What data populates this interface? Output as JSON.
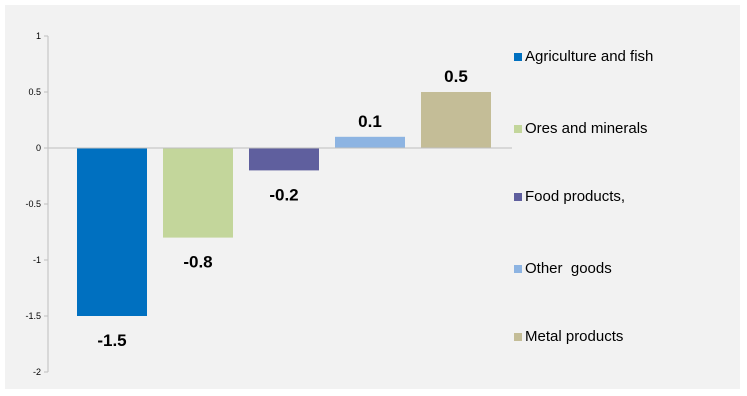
{
  "chart_data": {
    "type": "bar",
    "title": "",
    "xlabel": "",
    "ylabel": "",
    "ylim": [
      -2,
      1
    ],
    "yticks": [
      1,
      0.5,
      0,
      -0.5,
      -1,
      -1.5,
      -2
    ],
    "ytick_labels": [
      "1",
      "0.5",
      "0",
      "-0.5",
      "-1",
      "-1.5",
      "-2"
    ],
    "grid": false,
    "legend_position": "right",
    "categories": [
      "Agriculture and fish",
      "Ores and minerals",
      "Food products,",
      "Other  goods",
      "Metal products"
    ],
    "values": [
      -1.5,
      -0.8,
      -0.2,
      0.1,
      0.5
    ],
    "data_labels": [
      "-1.5",
      "-0.8",
      "-0.2",
      "0.1",
      "0.5"
    ],
    "colors": [
      "#0070c0",
      "#c3d69b",
      "#5f5f9e",
      "#8db4e2",
      "#c4bd97"
    ]
  }
}
